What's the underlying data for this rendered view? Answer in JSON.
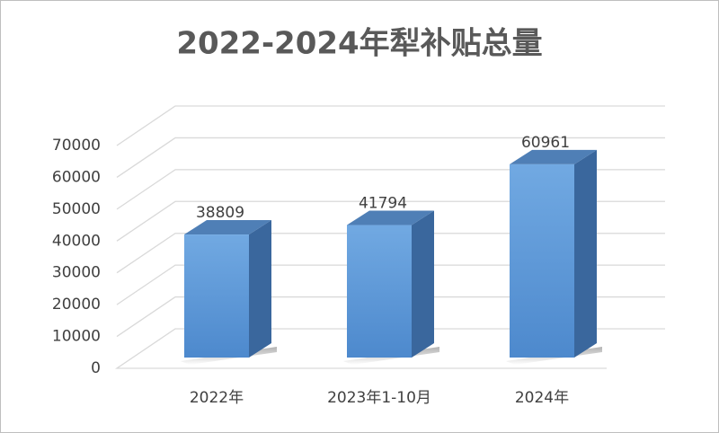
{
  "chart_data": {
    "type": "bar3d",
    "title": "2022-2024年犁补贴总量",
    "categories": [
      "2022年",
      "2023年1-10月",
      "2024年"
    ],
    "values": [
      38809,
      41794,
      60961
    ],
    "color": "#5b9bd5",
    "ylim": [
      0,
      70000
    ],
    "yticks": [
      0,
      10000,
      20000,
      30000,
      40000,
      50000,
      60000,
      70000
    ],
    "grid": true
  }
}
